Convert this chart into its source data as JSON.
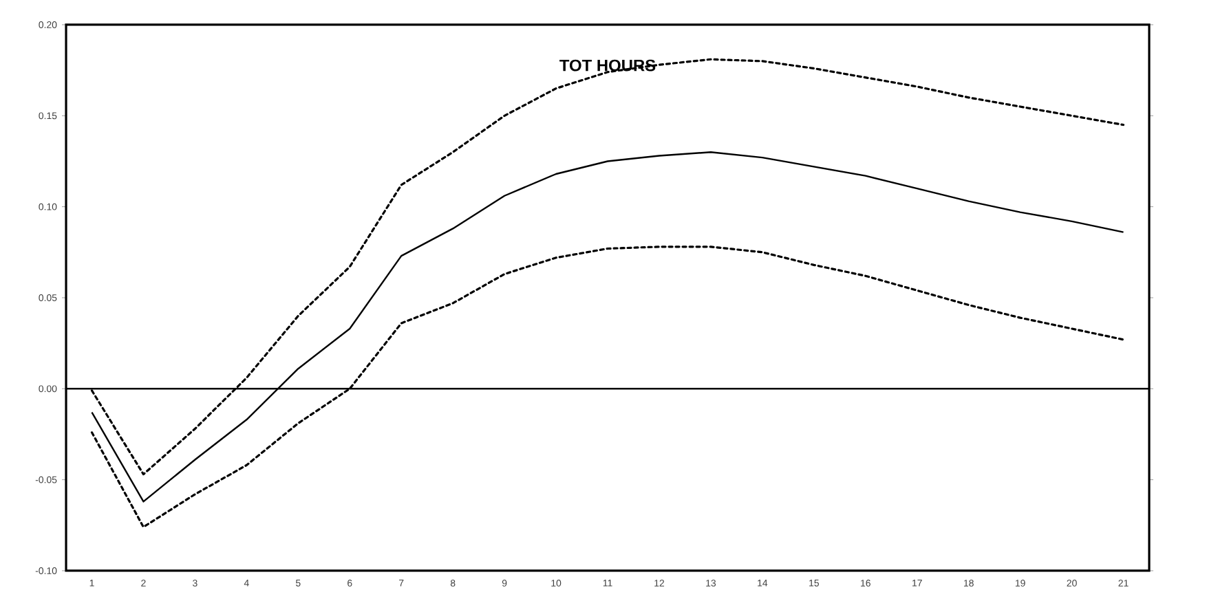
{
  "chart_data": {
    "type": "line",
    "title": "TOT HOURS",
    "categories": [
      "1",
      "2",
      "3",
      "4",
      "5",
      "6",
      "7",
      "8",
      "9",
      "10",
      "11",
      "12",
      "13",
      "14",
      "15",
      "16",
      "17",
      "18",
      "19",
      "20",
      "21"
    ],
    "series": [
      {
        "color": "#000000",
        "line_style": "solid",
        "values": [
          -0.013,
          -0.062,
          -0.039,
          -0.017,
          0.011,
          0.033,
          0.073,
          0.088,
          0.106,
          0.118,
          0.125,
          0.128,
          0.13,
          0.127,
          0.122,
          0.117,
          0.11,
          0.103,
          0.097,
          0.092,
          0.086
        ]
      },
      {
        "color": "#000000",
        "line_style": "dashed",
        "values": [
          -0.001,
          -0.047,
          -0.022,
          0.006,
          0.04,
          0.067,
          0.112,
          0.13,
          0.15,
          0.165,
          0.174,
          0.178,
          0.181,
          0.18,
          0.176,
          0.171,
          0.166,
          0.16,
          0.155,
          0.15,
          0.145
        ]
      },
      {
        "color": "#000000",
        "line_style": "dashed",
        "values": [
          -0.024,
          -0.076,
          -0.058,
          -0.042,
          -0.019,
          0.0,
          0.036,
          0.047,
          0.063,
          0.072,
          0.077,
          0.078,
          0.078,
          0.075,
          0.068,
          0.062,
          0.054,
          0.046,
          0.039,
          0.033,
          0.027
        ]
      }
    ],
    "ylim": [
      -0.1,
      0.2
    ],
    "yticks": [
      {
        "value": -0.1,
        "label": "-0.10"
      },
      {
        "value": -0.05,
        "label": "-0.05"
      },
      {
        "value": 0,
        "label": "0.00"
      },
      {
        "value": 0.05,
        "label": "0.05"
      },
      {
        "value": 0.1,
        "label": "0.10"
      },
      {
        "value": 0.15,
        "label": "0.15"
      },
      {
        "value": 0.2,
        "label": "0.20"
      }
    ],
    "ref_lines": [
      {
        "axis": "y",
        "value": 0,
        "color": "#000000"
      }
    ],
    "grid": false,
    "legend": false,
    "marker": "none"
  }
}
